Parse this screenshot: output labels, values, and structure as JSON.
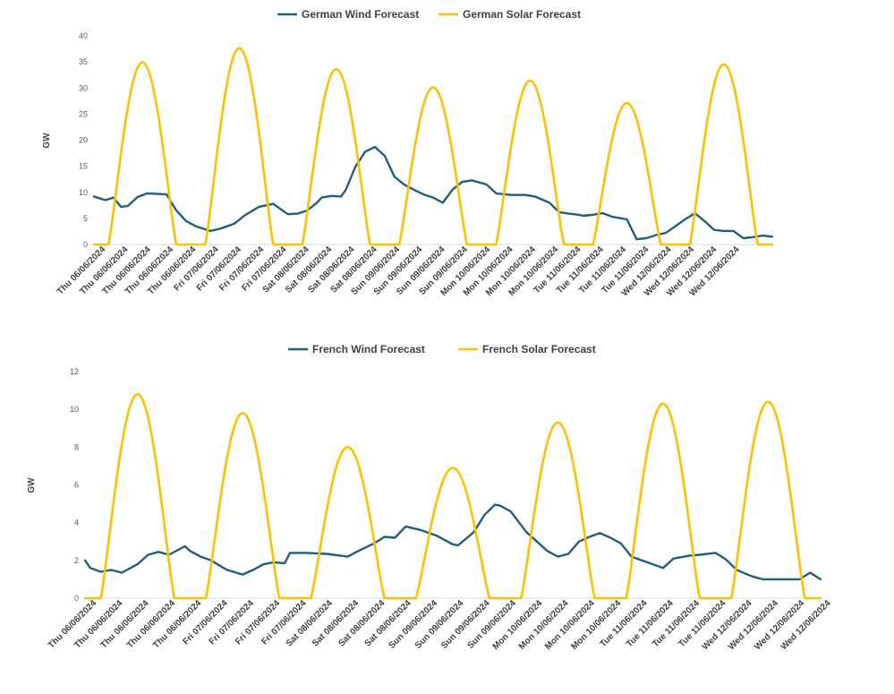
{
  "colors": {
    "wind": "#1f5e7e",
    "solar": "#ffc000",
    "axis": "#d9d9d9",
    "text": "#404040"
  },
  "chart_data": [
    {
      "type": "line",
      "ylabel": "GW",
      "ylim": [
        0,
        40
      ],
      "yticks": [
        0,
        5,
        10,
        15,
        20,
        25,
        30,
        35,
        40
      ],
      "legend_position": "top",
      "grid": false,
      "categories": [
        "Thu 06/06/2024",
        "Thu 06/06/2024",
        "Thu 06/06/2024",
        "Thu 06/06/2024",
        "Thu 06/06/2024",
        "Fri 07/06/2024",
        "Fri 07/06/2024",
        "Fri 07/06/2024",
        "Fri 07/06/2024",
        "Sat 08/06/2024",
        "Sat 08/06/2024",
        "Sat 08/06/2024",
        "Sat 08/06/2024",
        "Sun 09/06/2024",
        "Sun 09/06/2024",
        "Sun 09/06/2024",
        "Sun 09/06/2024",
        "Mon 10/06/2024",
        "Mon 10/06/2024",
        "Mon 10/06/2024",
        "Mon 10/06/2024",
        "Tue 11/06/2024",
        "Tue 11/06/2024",
        "Tue 11/06/2024",
        "Tue 11/06/2024",
        "Wed 12/06/2024",
        "Wed 12/06/2024",
        "Wed 12/06/2024",
        "Wed 12/06/2024"
      ],
      "x_days": [
        0,
        7
      ],
      "series": [
        {
          "name": "German Wind Forecast",
          "color_key": "wind",
          "x": [
            0,
            0.05,
            0.12,
            0.2,
            0.28,
            0.35,
            0.45,
            0.55,
            0.75,
            0.85,
            0.95,
            1.05,
            1.2,
            1.3,
            1.45,
            1.55,
            1.7,
            1.85,
            2.0,
            2.1,
            2.2,
            2.3,
            2.35,
            2.45,
            2.55,
            2.6,
            2.7,
            2.8,
            2.9,
            3.0,
            3.1,
            3.2,
            3.3,
            3.4,
            3.5,
            3.6,
            3.7,
            3.8,
            3.9,
            4.05,
            4.15,
            4.3,
            4.45,
            4.55,
            4.7,
            4.8,
            4.9,
            5.0,
            5.05,
            5.15,
            5.25,
            5.35,
            5.5,
            5.6,
            5.7,
            5.8,
            5.9,
            6.0,
            6.1,
            6.2,
            6.3,
            6.4,
            6.5,
            6.6,
            6.7,
            6.8,
            6.9,
            7.0
          ],
          "y": [
            9.2,
            8.9,
            8.5,
            9.0,
            7.2,
            7.4,
            9.1,
            9.8,
            9.6,
            6.5,
            4.5,
            3.5,
            2.6,
            3.0,
            4.0,
            5.5,
            7.2,
            7.8,
            5.8,
            5.9,
            6.5,
            8.0,
            9.0,
            9.3,
            9.2,
            10.5,
            15.0,
            17.8,
            18.7,
            17.0,
            13.0,
            11.5,
            10.5,
            9.6,
            9.0,
            8.0,
            10.5,
            12.0,
            12.3,
            11.5,
            9.8,
            9.5,
            9.5,
            9.2,
            8.0,
            6.2,
            5.9,
            5.7,
            5.5,
            5.7,
            6.0,
            5.3,
            4.8,
            1.0,
            1.2,
            1.8,
            2.2,
            3.5,
            4.8,
            6.0,
            4.5,
            2.8,
            2.6,
            2.6,
            1.2,
            1.4,
            1.7,
            1.5
          ]
        },
        {
          "name": "German Solar Forecast",
          "color_key": "solar",
          "peaks": [
            34.9,
            37.6,
            33.6,
            30.1,
            31.4,
            27.1,
            34.5
          ],
          "peak_day_offset": 0.5,
          "half_width_days": 0.35
        }
      ]
    },
    {
      "type": "line",
      "ylabel": "GW",
      "ylim": [
        0,
        12
      ],
      "yticks": [
        0,
        2,
        4,
        6,
        8,
        10,
        12
      ],
      "legend_position": "top",
      "grid": false,
      "categories": [
        "Thu 06/06/2024",
        "Thu 06/06/2024",
        "Thu 06/06/2024",
        "Thu 06/06/2024",
        "Thu 06/06/2024",
        "Fri 07/06/2024",
        "Fri 07/06/2024",
        "Fri 07/06/2024",
        "Fri 07/06/2024",
        "Sat 08/06/2024",
        "Sat 08/06/2024",
        "Sat 08/06/2024",
        "Sat 08/06/2024",
        "Sun 09/06/2024",
        "Sun 09/06/2024",
        "Sun 09/06/2024",
        "Sun 09/06/2024",
        "Mon 10/06/2024",
        "Mon 10/06/2024",
        "Mon 10/06/2024",
        "Mon 10/06/2024",
        "Tue 11/06/2024",
        "Tue 11/06/2024",
        "Tue 11/06/2024",
        "Tue 11/06/2024",
        "Wed 12/06/2024",
        "Wed 12/06/2024",
        "Wed 12/06/2024",
        "Wed 12/06/2024"
      ],
      "x_days": [
        0,
        7
      ],
      "series": [
        {
          "name": "French Wind Forecast",
          "color_key": "wind",
          "x": [
            0,
            0.05,
            0.15,
            0.25,
            0.35,
            0.5,
            0.6,
            0.7,
            0.8,
            0.95,
            1.0,
            1.1,
            1.2,
            1.35,
            1.5,
            1.6,
            1.7,
            1.8,
            1.9,
            1.95,
            2.1,
            2.3,
            2.5,
            2.6,
            2.75,
            2.85,
            2.95,
            3.05,
            3.2,
            3.35,
            3.5,
            3.55,
            3.7,
            3.8,
            3.9,
            3.95,
            4.05,
            4.2,
            4.4,
            4.5,
            4.6,
            4.7,
            4.8,
            4.9,
            5.0,
            5.1,
            5.2,
            5.35,
            5.5,
            5.6,
            5.75,
            5.85,
            6.0,
            6.1,
            6.2,
            6.35,
            6.45,
            6.6,
            6.8,
            6.9,
            7.0
          ],
          "y": [
            2.0,
            1.6,
            1.4,
            1.5,
            1.35,
            1.8,
            2.3,
            2.45,
            2.3,
            2.75,
            2.5,
            2.2,
            2.0,
            1.5,
            1.25,
            1.5,
            1.8,
            1.9,
            1.85,
            2.4,
            2.4,
            2.35,
            2.2,
            2.5,
            2.9,
            3.25,
            3.2,
            3.8,
            3.6,
            3.3,
            2.85,
            2.8,
            3.5,
            4.4,
            4.95,
            4.9,
            4.6,
            3.5,
            2.5,
            2.2,
            2.35,
            3.0,
            3.25,
            3.45,
            3.2,
            2.9,
            2.2,
            1.9,
            1.6,
            2.1,
            2.25,
            2.3,
            2.4,
            2.05,
            1.5,
            1.15,
            1.0,
            1.0,
            1.0,
            1.35,
            1.0
          ]
        },
        {
          "name": "French  Solar Forecast",
          "color_key": "solar",
          "peaks": [
            10.8,
            9.8,
            8.0,
            6.9,
            9.3,
            10.3,
            10.4
          ],
          "peak_day_offset": 0.5,
          "half_width_days": 0.35
        }
      ]
    }
  ]
}
